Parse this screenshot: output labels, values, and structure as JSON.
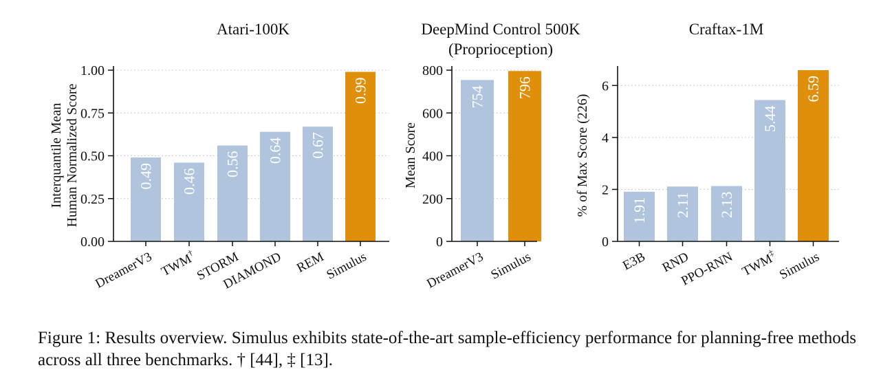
{
  "chart_data": [
    {
      "type": "bar",
      "title": "Atari-100K",
      "ylabel": [
        "Interquantile Mean",
        "Human Normalized Score"
      ],
      "categories": [
        "DreamerV3",
        "TWM",
        "STORM",
        "DIAMOND",
        "REM",
        "Simulus"
      ],
      "category_superscripts": [
        "",
        "†",
        "",
        "",
        "",
        ""
      ],
      "values": [
        0.49,
        0.46,
        0.56,
        0.64,
        0.67,
        0.99
      ],
      "value_labels": [
        "0.49",
        "0.46",
        "0.56",
        "0.64",
        "0.67",
        "0.99"
      ],
      "highlight": "Simulus",
      "yticks": [
        "0.00",
        "0.25",
        "0.50",
        "0.75",
        "1.00"
      ],
      "ylim": [
        0,
        1.0
      ],
      "grid": "horizontal dotted"
    },
    {
      "type": "bar",
      "title": [
        "DeepMind Control 500K",
        "(Proprioception)"
      ],
      "ylabel": [
        "Mean Score"
      ],
      "categories": [
        "DreamerV3",
        "Simulus"
      ],
      "category_superscripts": [
        "",
        ""
      ],
      "values": [
        754,
        796
      ],
      "value_labels": [
        "754",
        "796"
      ],
      "highlight": "Simulus",
      "yticks": [
        "0",
        "200",
        "400",
        "600",
        "800"
      ],
      "ylim": [
        0,
        800
      ],
      "grid": "horizontal dotted"
    },
    {
      "type": "bar",
      "title": "Craftax-1M",
      "ylabel": [
        "% of Max Score (226)"
      ],
      "categories": [
        "E3B",
        "RND",
        "PPO-RNN",
        "TWM",
        "Simulus"
      ],
      "category_superscripts": [
        "",
        "",
        "",
        "‡",
        ""
      ],
      "values": [
        1.91,
        2.11,
        2.13,
        5.44,
        6.59
      ],
      "value_labels": [
        "1.91",
        "2.11",
        "2.13",
        "5.44",
        "6.59"
      ],
      "highlight": "Simulus",
      "yticks": [
        "0",
        "2",
        "4",
        "6"
      ],
      "ylim": [
        0,
        6.59
      ],
      "grid": "horizontal dotted"
    }
  ],
  "colors": {
    "bar": "#b0c4de",
    "highlight": "#e08f0a",
    "grid": "#cccccc",
    "axis": "#111111",
    "value_text": "#ffffff"
  },
  "caption": "Figure 1: Results overview. Simulus exhibits state-of-the-art sample-efficiency performance for planning-free methods across all three benchmarks. † [44], ‡ [13]."
}
